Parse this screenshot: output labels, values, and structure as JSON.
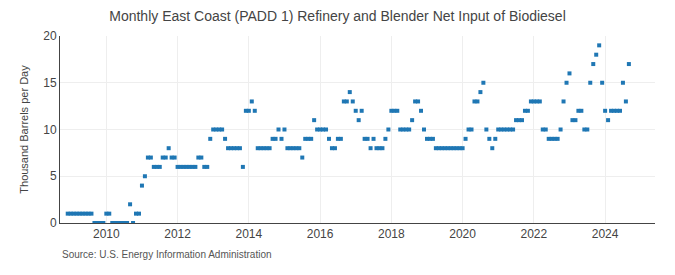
{
  "chart_data": {
    "type": "scatter",
    "title": "Monthly East Coast (PADD 1) Refinery and Blender Net Input of Biodiesel",
    "ylabel": "Thousand Barrels per Day",
    "annotations": [
      "Source: U.S. Energy Information Administration"
    ],
    "marker": "square",
    "grid": true,
    "xlim": [
      2008.7,
      2025.4
    ],
    "xticks": [
      2010,
      2012,
      2014,
      2016,
      2018,
      2020,
      2022,
      2024
    ],
    "ylim": [
      0,
      20
    ],
    "yticks": [
      0,
      5,
      10,
      15,
      20
    ],
    "x": [
      2008.917,
      2009.0,
      2009.083,
      2009.167,
      2009.25,
      2009.333,
      2009.417,
      2009.5,
      2009.583,
      2009.667,
      2009.75,
      2009.833,
      2009.917,
      2010.0,
      2010.083,
      2010.167,
      2010.25,
      2010.333,
      2010.417,
      2010.5,
      2010.583,
      2010.667,
      2010.75,
      2010.833,
      2010.917,
      2011.0,
      2011.083,
      2011.167,
      2011.25,
      2011.333,
      2011.417,
      2011.5,
      2011.583,
      2011.667,
      2011.75,
      2011.833,
      2011.917,
      2012.0,
      2012.083,
      2012.167,
      2012.25,
      2012.333,
      2012.417,
      2012.5,
      2012.583,
      2012.667,
      2012.75,
      2012.833,
      2012.917,
      2013.0,
      2013.083,
      2013.167,
      2013.25,
      2013.333,
      2013.417,
      2013.5,
      2013.583,
      2013.667,
      2013.75,
      2013.833,
      2013.917,
      2014.0,
      2014.083,
      2014.167,
      2014.25,
      2014.333,
      2014.417,
      2014.5,
      2014.583,
      2014.667,
      2014.75,
      2014.833,
      2014.917,
      2015.0,
      2015.083,
      2015.167,
      2015.25,
      2015.333,
      2015.417,
      2015.5,
      2015.583,
      2015.667,
      2015.75,
      2015.833,
      2015.917,
      2016.0,
      2016.083,
      2016.167,
      2016.25,
      2016.333,
      2016.417,
      2016.5,
      2016.583,
      2016.667,
      2016.75,
      2016.833,
      2016.917,
      2017.0,
      2017.083,
      2017.167,
      2017.25,
      2017.333,
      2017.417,
      2017.5,
      2017.583,
      2017.667,
      2017.75,
      2017.833,
      2017.917,
      2018.0,
      2018.083,
      2018.167,
      2018.25,
      2018.333,
      2018.417,
      2018.5,
      2018.583,
      2018.667,
      2018.75,
      2018.833,
      2018.917,
      2019.0,
      2019.083,
      2019.167,
      2019.25,
      2019.333,
      2019.417,
      2019.5,
      2019.583,
      2019.667,
      2019.75,
      2019.833,
      2019.917,
      2020.0,
      2020.083,
      2020.167,
      2020.25,
      2020.333,
      2020.417,
      2020.5,
      2020.583,
      2020.667,
      2020.75,
      2020.833,
      2020.917,
      2021.0,
      2021.083,
      2021.167,
      2021.25,
      2021.333,
      2021.417,
      2021.5,
      2021.583,
      2021.667,
      2021.75,
      2021.833,
      2021.917,
      2022.0,
      2022.083,
      2022.167,
      2022.25,
      2022.333,
      2022.417,
      2022.5,
      2022.583,
      2022.667,
      2022.75,
      2022.833,
      2022.917,
      2023.0,
      2023.083,
      2023.167,
      2023.25,
      2023.333,
      2023.417,
      2023.5,
      2023.583,
      2023.667,
      2023.75,
      2023.833,
      2023.917,
      2024.0,
      2024.083,
      2024.167,
      2024.25,
      2024.333,
      2024.417,
      2024.5,
      2024.583,
      2024.667
    ],
    "values": [
      1.0,
      1.0,
      1.0,
      1.0,
      1.0,
      1.0,
      1.0,
      1.0,
      1.0,
      0.0,
      0.0,
      0.0,
      0.0,
      1.0,
      1.0,
      0.0,
      0.0,
      0.0,
      0.0,
      0.0,
      0.0,
      2.0,
      0.0,
      1.0,
      1.0,
      4.0,
      5.0,
      7.0,
      7.0,
      6.0,
      6.0,
      6.0,
      7.0,
      7.0,
      8.0,
      7.0,
      7.0,
      6.0,
      6.0,
      6.0,
      6.0,
      6.0,
      6.0,
      6.0,
      7.0,
      7.0,
      6.0,
      6.0,
      9.0,
      10.0,
      10.0,
      10.0,
      10.0,
      9.0,
      8.0,
      8.0,
      8.0,
      8.0,
      8.0,
      6.0,
      12.0,
      12.0,
      13.0,
      12.0,
      8.0,
      8.0,
      8.0,
      8.0,
      8.0,
      9.0,
      9.0,
      10.0,
      9.0,
      10.0,
      8.0,
      8.0,
      8.0,
      8.0,
      8.0,
      7.0,
      9.0,
      9.0,
      9.0,
      11.0,
      10.0,
      10.0,
      10.0,
      10.0,
      9.0,
      8.0,
      8.0,
      9.0,
      9.0,
      13.0,
      13.0,
      14.0,
      13.0,
      12.0,
      11.0,
      12.0,
      9.0,
      9.0,
      8.0,
      9.0,
      8.0,
      8.0,
      8.0,
      9.0,
      10.0,
      12.0,
      12.0,
      12.0,
      10.0,
      10.0,
      10.0,
      10.0,
      11.0,
      13.0,
      13.0,
      12.0,
      10.0,
      9.0,
      9.0,
      9.0,
      8.0,
      8.0,
      8.0,
      8.0,
      8.0,
      8.0,
      8.0,
      8.0,
      8.0,
      8.0,
      9.0,
      10.0,
      10.0,
      13.0,
      13.0,
      14.0,
      15.0,
      10.0,
      9.0,
      8.0,
      9.0,
      10.0,
      10.0,
      10.0,
      10.0,
      10.0,
      10.0,
      11.0,
      11.0,
      11.0,
      12.0,
      12.0,
      13.0,
      13.0,
      13.0,
      13.0,
      10.0,
      10.0,
      9.0,
      9.0,
      9.0,
      9.0,
      10.0,
      13.0,
      15.0,
      16.0,
      11.0,
      11.0,
      12.0,
      12.0,
      10.0,
      10.0,
      15.0,
      17.0,
      18.0,
      19.0,
      15.0,
      12.0,
      11.0,
      12.0,
      12.0,
      12.0,
      12.0,
      15.0,
      13.0,
      17.0
    ]
  }
}
